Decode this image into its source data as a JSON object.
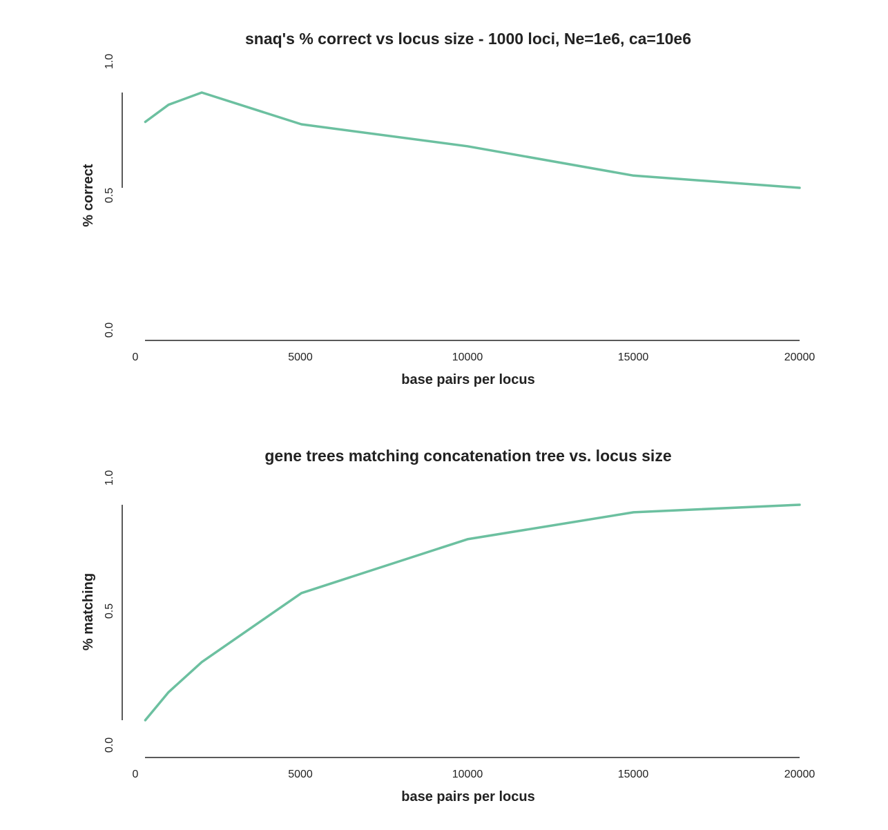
{
  "chart_data": [
    {
      "type": "line",
      "title": "snaq's % correct vs locus size - 1000 loci, Ne=1e6, ca=10e6",
      "xlabel": "base pairs per locus",
      "ylabel": "% correct",
      "xlim": [
        0,
        20000
      ],
      "ylim": [
        0.0,
        1.0
      ],
      "xticks": [
        "0",
        "5000",
        "10000",
        "15000",
        "20000"
      ],
      "yticks": [
        "0.0",
        "0.5",
        "1.0"
      ],
      "grid": false,
      "series": [
        {
          "color": "#6cc0a0",
          "x": [
            300,
            1000,
            2000,
            5000,
            10000,
            15000,
            20000
          ],
          "y": [
            0.88,
            0.95,
            1.0,
            0.87,
            0.78,
            0.66,
            0.61
          ]
        }
      ]
    },
    {
      "type": "line",
      "title": "gene trees matching concatenation tree vs. locus size",
      "xlabel": "base pairs per locus",
      "ylabel": "% matching",
      "xlim": [
        0,
        20000
      ],
      "ylim": [
        0.0,
        1.0
      ],
      "xticks": [
        "0",
        "5000",
        "10000",
        "15000",
        "20000"
      ],
      "yticks": [
        "0.0",
        "0.5",
        "1.0"
      ],
      "grid": false,
      "series": [
        {
          "color": "#6cc0a0",
          "x": [
            300,
            1000,
            2000,
            5000,
            10000,
            15000,
            20000
          ],
          "y": [
            0.0,
            0.13,
            0.27,
            0.59,
            0.84,
            0.965,
            1.0
          ]
        }
      ]
    }
  ]
}
